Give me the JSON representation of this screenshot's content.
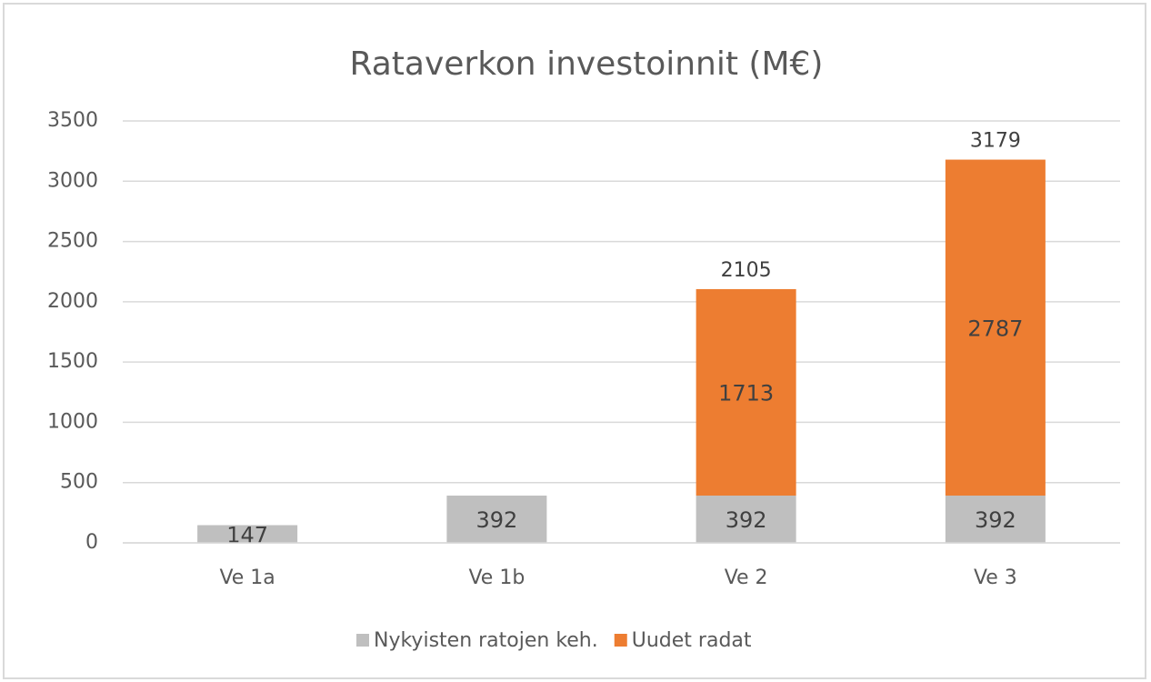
{
  "chart_data": {
    "type": "stacked_bar",
    "title": "Rataverkon investoinnit (M€)",
    "categories": [
      "Ve 1a",
      "Ve 1b",
      "Ve 2",
      "Ve 3"
    ],
    "series": [
      {
        "name": "Nykyisten ratojen keh.",
        "color": "#bfbfbf",
        "values": [
          147,
          392,
          392,
          392
        ]
      },
      {
        "name": "Uudet radat",
        "color": "#ed7d31",
        "values": [
          null,
          null,
          1713,
          2787
        ]
      }
    ],
    "totals": [
      null,
      null,
      2105,
      3179
    ],
    "ylim": [
      0,
      3500
    ],
    "yticks": [
      0,
      500,
      1000,
      1500,
      2000,
      2500,
      3000,
      3500
    ],
    "grid": true,
    "legend": "bottom"
  }
}
